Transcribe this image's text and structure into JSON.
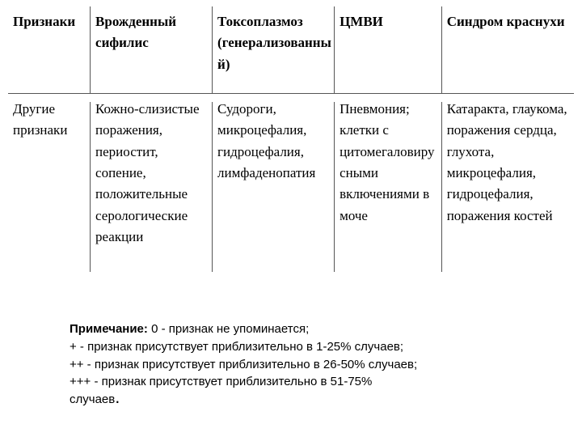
{
  "table": {
    "columns": [
      "Признаки",
      "Врожденный сифилис",
      "Токсоплазмоз (генерализованный)",
      "ЦМВИ",
      "Синдром краснухи"
    ],
    "row_label": "Другие признаки",
    "cells": [
      "Кожно-слизистые поражения, периостит, сопение, положительные серологические реакции",
      "Судороги, микроцефалия, гидроцефалия, лимфаденопатия",
      "Пневмония; клетки с цитомегаловирусными включениями в моче",
      "Катаракта, глаукома, поражения сердца, глухота, микроцефалия, гидроцефалия, поражения костей"
    ]
  },
  "note": {
    "label": "Примечание:",
    "l0": " 0 - признак не упоминается;",
    "l1": "+ - признак присутствует приблизительно в 1-25% случаев;",
    "l2": " ++ - признак присутствует приблизительно в 26-50% случаев;",
    "l3": "+++ - признак присутствует приблизительно в 51-75%",
    "l4": "случаев",
    "dot": "."
  },
  "colors": {
    "text": "#000000",
    "border": "#555555",
    "background": "#ffffff"
  }
}
